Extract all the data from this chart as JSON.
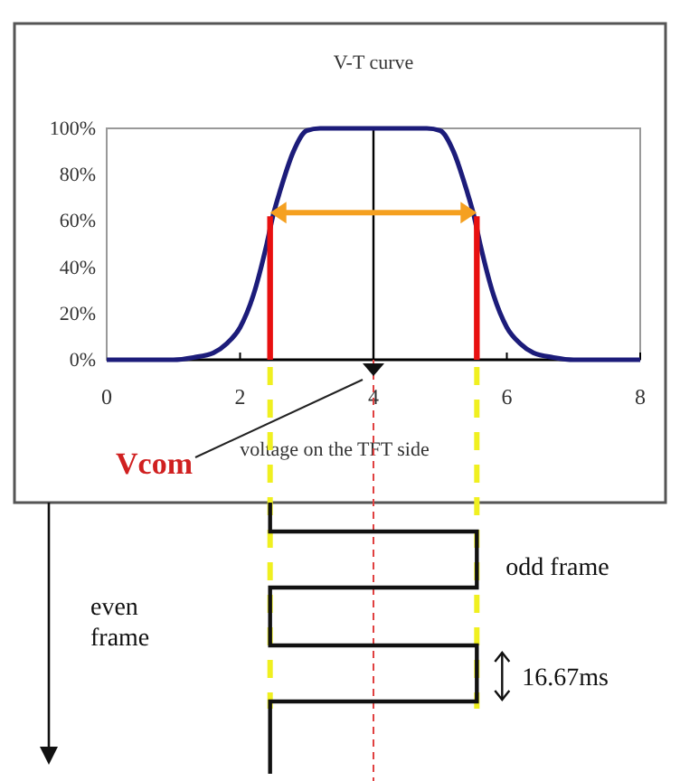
{
  "chart_data": {
    "type": "line",
    "title": "V-T curve",
    "xlabel": "voltage on the TFT side",
    "xlim": [
      0,
      8
    ],
    "xticks": [
      0,
      2,
      4,
      6,
      8
    ],
    "ylim": [
      0,
      100
    ],
    "yticks": [
      {
        "value": 0,
        "label": "0%"
      },
      {
        "value": 20,
        "label": "20%"
      },
      {
        "value": 40,
        "label": "40%"
      },
      {
        "value": 60,
        "label": "60%"
      },
      {
        "value": 80,
        "label": "80%"
      },
      {
        "value": 100,
        "label": "100%"
      }
    ],
    "grid": false,
    "marker": "none",
    "line_style": "solid",
    "series": [
      {
        "color": "#1c1c7a",
        "x": [
          0,
          1,
          1.3,
          1.6,
          1.8,
          2.0,
          2.2,
          2.4,
          2.5,
          2.6,
          2.8,
          3.0,
          3.2,
          4.8,
          5.0,
          5.2,
          5.4,
          5.5,
          5.6,
          5.8,
          6.0,
          6.2,
          6.4,
          6.7,
          7,
          8
        ],
        "values": [
          0,
          0,
          1,
          3,
          7,
          14,
          28,
          50,
          63,
          73,
          90,
          99,
          100,
          100,
          99,
          90,
          73,
          63,
          50,
          28,
          14,
          7,
          3,
          1,
          0,
          0
        ]
      },
      {
        "color": "#e81010",
        "x": [
          2.45,
          2.45
        ],
        "values": [
          0,
          62
        ]
      },
      {
        "color": "#e81010",
        "x": [
          5.55,
          5.55
        ],
        "values": [
          0,
          62
        ]
      }
    ],
    "ref_lines": [
      {
        "axis": "x",
        "value": 4,
        "color": "#000000"
      }
    ],
    "annotations": [
      "Vcom",
      "odd frame",
      "even frame",
      "16.67ms"
    ]
  }
}
